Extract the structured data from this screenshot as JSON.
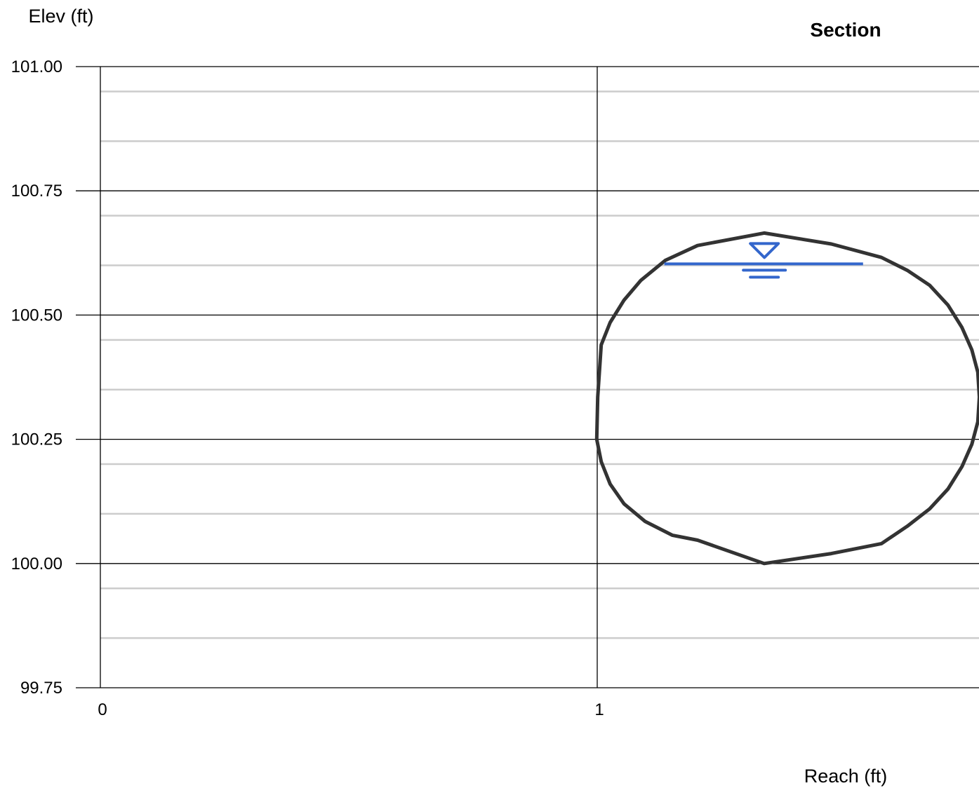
{
  "chart_data": {
    "type": "line",
    "title": "Section",
    "xlabel": "Reach (ft)",
    "ylabel": "Elev (ft)",
    "xlim": [
      0,
      1.76
    ],
    "ylim": [
      99.75,
      101.0
    ],
    "x_major_ticks": [
      0,
      1
    ],
    "x_tick_labels": [
      "0",
      "1"
    ],
    "y_major_ticks": [
      99.75,
      100.0,
      100.25,
      100.5,
      100.75,
      101.0
    ],
    "y_tick_labels": [
      "99.75",
      "100.00",
      "100.25",
      "100.50",
      "100.75",
      "101.00"
    ],
    "y_minor_ticks": [
      99.85,
      99.95,
      100.1,
      100.2,
      100.35,
      100.45,
      100.6,
      100.7,
      100.85,
      100.95
    ],
    "grid": true,
    "colors": {
      "section": "#333333",
      "water": "#3366cc",
      "major_grid": "#000000",
      "minor_grid": "#cccccc"
    },
    "series": [
      {
        "kind": "section",
        "x": [
          1.336,
          1.471,
          1.572,
          1.624,
          1.669,
          1.706,
          1.734,
          1.754,
          1.766,
          1.769,
          1.766,
          1.754,
          1.734,
          1.706,
          1.669,
          1.624,
          1.572,
          1.471,
          1.336,
          1.202,
          1.151,
          1.096,
          1.054,
          1.026,
          1.008,
          0.999,
          1.001,
          1.008,
          1.026,
          1.054,
          1.088,
          1.137,
          1.202,
          1.336
        ],
        "y": [
          100.665,
          100.643,
          100.616,
          100.59,
          100.56,
          100.52,
          100.475,
          100.43,
          100.385,
          100.335,
          100.285,
          100.24,
          100.195,
          100.15,
          100.11,
          100.075,
          100.04,
          100.02,
          100.0,
          100.047,
          100.057,
          100.085,
          100.12,
          100.16,
          100.205,
          100.25,
          100.335,
          100.44,
          100.485,
          100.53,
          100.57,
          100.61,
          100.64,
          100.665
        ]
      },
      {
        "kind": "water-surface",
        "x": [
          1.135,
          1.535
        ],
        "y": [
          100.603,
          100.603
        ]
      }
    ]
  }
}
